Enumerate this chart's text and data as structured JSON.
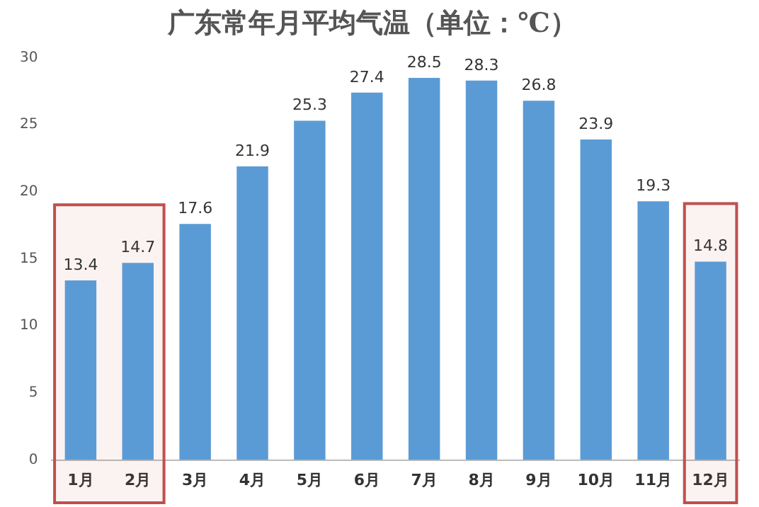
{
  "chart_data": {
    "type": "bar",
    "title": "广东常年月平均气温（单位：℃）",
    "categories": [
      "1月",
      "2月",
      "3月",
      "4月",
      "5月",
      "6月",
      "7月",
      "8月",
      "9月",
      "10月",
      "11月",
      "12月"
    ],
    "values": [
      13.4,
      14.7,
      17.6,
      21.9,
      25.3,
      27.4,
      28.5,
      28.3,
      26.8,
      23.9,
      19.3,
      14.8
    ],
    "color": "#5b9bd5",
    "ylim": [
      0,
      30
    ],
    "yticks": [
      0,
      5,
      10,
      15,
      20,
      25,
      30
    ],
    "grid": false,
    "data_labels": true,
    "bands": [
      {
        "axis": "x",
        "from": "1月",
        "to": "2月",
        "color": "#c0504d"
      },
      {
        "axis": "x",
        "from": "12月",
        "to": "12月",
        "color": "#c0504d"
      }
    ]
  }
}
